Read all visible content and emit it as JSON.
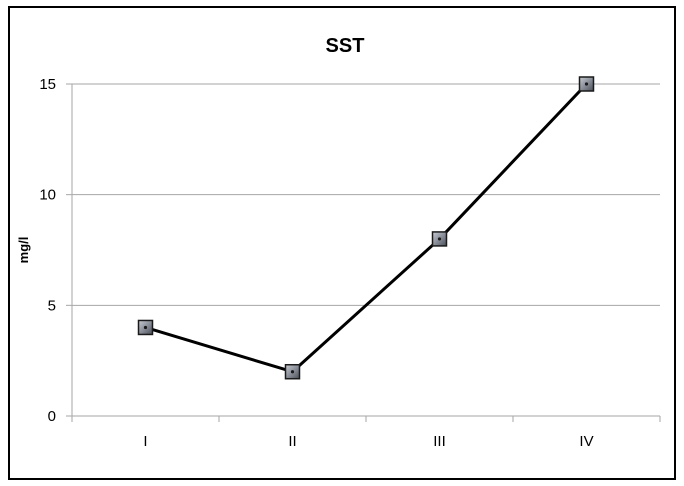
{
  "chart_data": {
    "type": "line",
    "title": "SST",
    "xlabel": "",
    "ylabel": "mg/l",
    "categories": [
      "I",
      "II",
      "III",
      "IV"
    ],
    "series": [
      {
        "values": [
          4,
          2,
          8,
          15
        ],
        "color": "#000000",
        "marker": "square",
        "marker_color": "#8a8f99"
      }
    ],
    "ylim": [
      0,
      15
    ],
    "yticks": [
      0,
      5,
      10,
      15
    ],
    "grid": true,
    "grid_color": "#a6a6a6",
    "legend": "none"
  }
}
